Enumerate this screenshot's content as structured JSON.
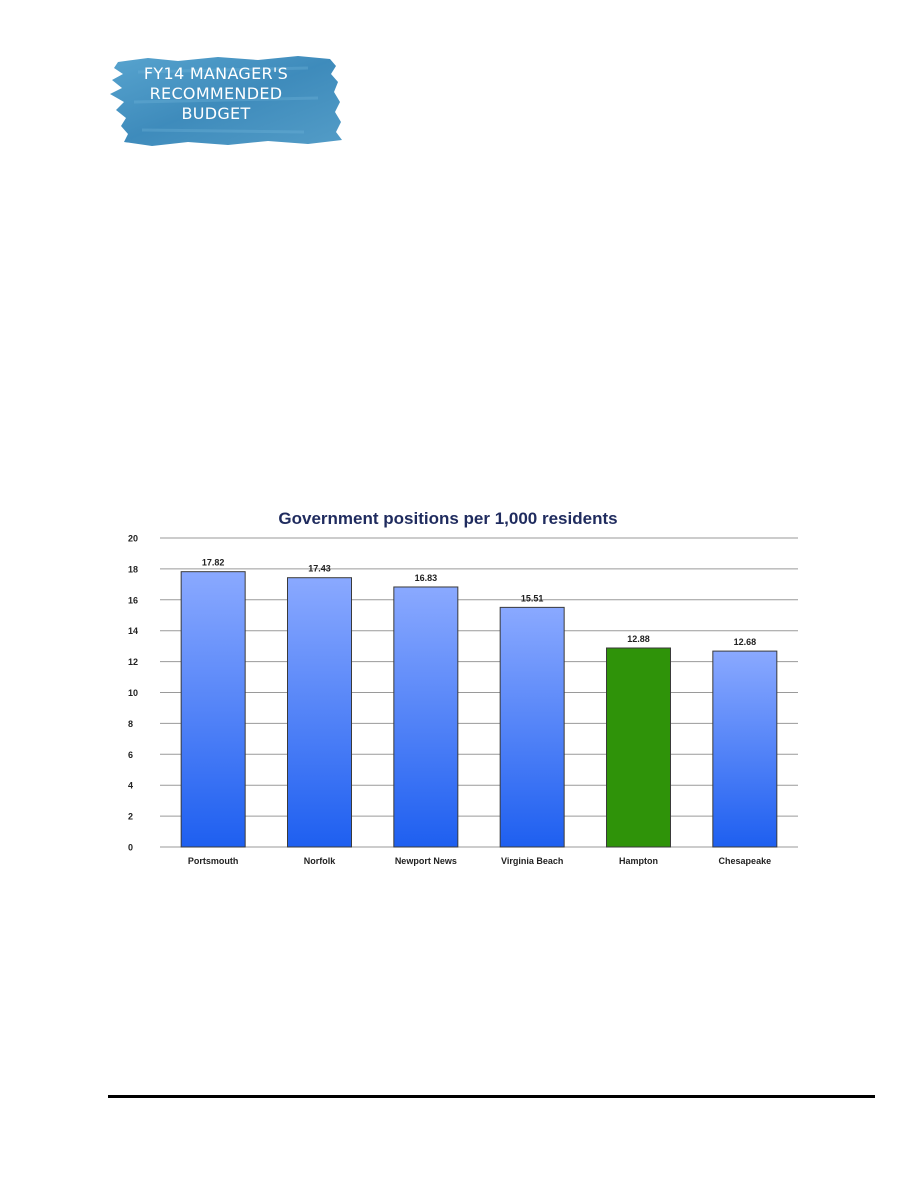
{
  "logo": {
    "lines": [
      "FY14 MANAGER'S",
      "RECOMMENDED",
      "BUDGET"
    ],
    "color": "#3f8fbf"
  },
  "chart_data": {
    "type": "bar",
    "title": "Government positions per 1,000 residents",
    "categories": [
      "Portsmouth",
      "Norfolk",
      "Newport News",
      "Virginia Beach",
      "Hampton",
      "Chesapeake"
    ],
    "values": [
      17.82,
      17.43,
      16.83,
      15.51,
      12.88,
      12.68
    ],
    "value_labels": [
      "17.82",
      "17.43",
      "16.83",
      "15.51",
      "12.88",
      "12.68"
    ],
    "ylim": [
      0,
      20
    ],
    "yticks": [
      "0",
      "2",
      "4",
      "6",
      "8",
      "10",
      "12",
      "14",
      "16",
      "18",
      "20"
    ],
    "grid": true,
    "legend": "none",
    "xlabel": "",
    "ylabel": "",
    "colors": {
      "bar_top": "#8aa9ff",
      "bar_bottom": "#1e5ff0",
      "highlight": "#2f9309",
      "highlight_category": "Hampton",
      "grid": "#9a9a9a",
      "title": "#1f2b5e"
    }
  }
}
